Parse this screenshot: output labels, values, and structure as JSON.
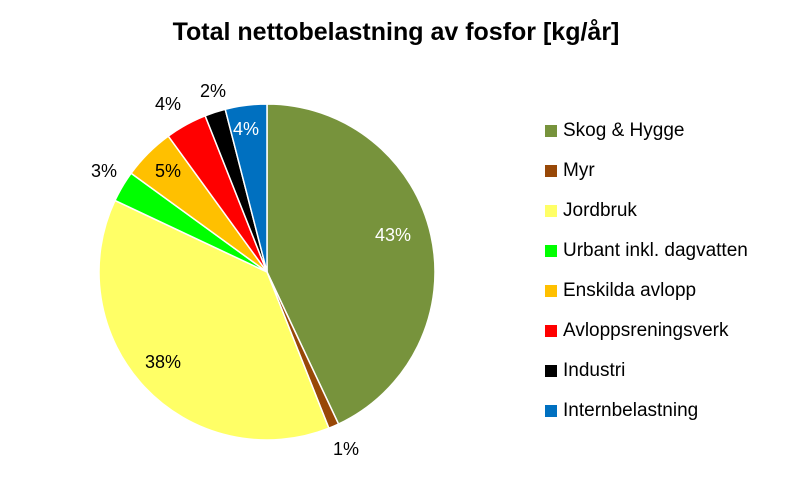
{
  "chart_data": {
    "type": "pie",
    "title": "Total nettobelastning av fosfor [kg/år]",
    "legend_position": "right",
    "slices": [
      {
        "name": "Skog & Hygge",
        "value": 43,
        "label": "43%",
        "color": "#77933C",
        "label_color": "#FFFFFF"
      },
      {
        "name": "Myr",
        "value": 1,
        "label": "1%",
        "color": "#984807",
        "label_color": "#000000"
      },
      {
        "name": "Jordbruk",
        "value": 38,
        "label": "38%",
        "color": "#FFFF66",
        "label_color": "#000000"
      },
      {
        "name": "Urbant inkl. dagvatten",
        "value": 3,
        "label": "3%",
        "color": "#00FF00",
        "label_color": "#000000"
      },
      {
        "name": "Enskilda avlopp",
        "value": 5,
        "label": "5%",
        "color": "#FFC000",
        "label_color": "#000000"
      },
      {
        "name": "Avloppsreningsverk",
        "value": 4,
        "label": "4%",
        "color": "#FF0000",
        "label_color": "#000000"
      },
      {
        "name": "Industri",
        "value": 2,
        "label": "2%",
        "color": "#000000",
        "label_color": "#000000"
      },
      {
        "name": "Internbelastning",
        "value": 4,
        "label": "4%",
        "color": "#0070C0",
        "label_color": "#FFFFFF"
      }
    ]
  }
}
